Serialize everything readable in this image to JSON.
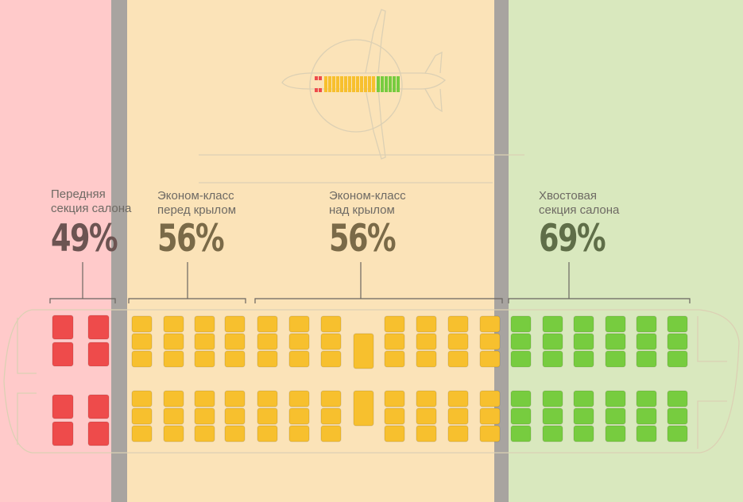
{
  "sections": [
    {
      "label_line1": "Передняя",
      "label_line2": "секция салона",
      "percent": "49%",
      "color": "#ee4b4b",
      "text_color": "#6c5452"
    },
    {
      "label_line1": "Эконом-класс",
      "label_line2": "перед крылом",
      "percent": "56%",
      "color": "#f7c02e",
      "text_color": "#7a6a48"
    },
    {
      "label_line1": "Эконом-класс",
      "label_line2": "над крылом",
      "percent": "56%",
      "color": "#f7c02e",
      "text_color": "#7a6a48"
    },
    {
      "label_line1": "Хвостовая",
      "label_line2": "секция салона",
      "percent": "69%",
      "color": "#77cc3f",
      "text_color": "#5f6e48"
    }
  ]
}
